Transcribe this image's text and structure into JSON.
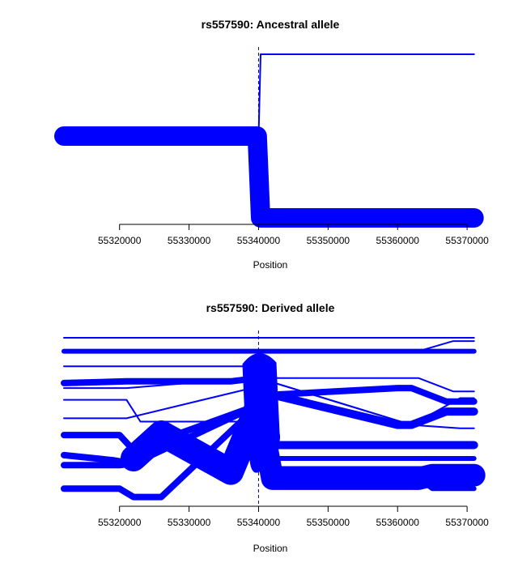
{
  "chart_data": [
    {
      "type": "line",
      "title": "rs557590: Ancestral allele",
      "xlabel": "Position",
      "ylabel": "",
      "xlim": [
        55312000,
        55371500
      ],
      "x_ticks": [
        55320000,
        55330000,
        55340000,
        55350000,
        55360000,
        55370000
      ],
      "x_tick_labels": [
        "55320000",
        "55330000",
        "55340000",
        "55350000",
        "55360000",
        "55370000"
      ],
      "marker_position": 55340000,
      "series": [
        {
          "x": [
            55340000,
            55340300,
            55371000
          ],
          "level": [
            0.0,
            1.0,
            1.0
          ],
          "weight": 1
        },
        {
          "x": [
            55312000,
            55339800,
            55340300,
            55371000
          ],
          "level": [
            0.0,
            0.0,
            -1.0,
            -1.0
          ],
          "weight": 12
        }
      ]
    },
    {
      "type": "line",
      "title": "rs557590: Derived allele",
      "xlabel": "Position",
      "ylabel": "",
      "xlim": [
        55312000,
        55371500
      ],
      "x_ticks": [
        55320000,
        55330000,
        55340000,
        55350000,
        55360000,
        55370000
      ],
      "x_tick_labels": [
        "55320000",
        "55330000",
        "55340000",
        "55350000",
        "55360000",
        "55370000"
      ],
      "marker_position": 55340000,
      "series": [
        {
          "x": [
            55312000,
            55340000,
            55363000,
            55368000,
            55371000
          ],
          "level": [
            1.0,
            1.0,
            1.0,
            1.0,
            1.0
          ],
          "weight": 1
        },
        {
          "x": [
            55312000,
            55340000,
            55363000,
            55368000,
            55371000
          ],
          "level": [
            0.92,
            0.92,
            0.92,
            0.98,
            0.98
          ],
          "weight": 1
        },
        {
          "x": [
            55312000,
            55340000,
            55363000,
            55368000,
            55371000
          ],
          "level": [
            0.92,
            0.92,
            0.92,
            0.92,
            0.92
          ],
          "weight": 3
        },
        {
          "x": [
            55312000,
            55340000
          ],
          "level": [
            0.83,
            0.83
          ],
          "weight": 1
        },
        {
          "x": [
            55312000,
            55321000,
            55339000,
            55340000
          ],
          "level": [
            0.7,
            0.7,
            0.76,
            0.76
          ],
          "weight": 1
        },
        {
          "x": [
            55312000,
            55321000,
            55339000,
            55340000
          ],
          "level": [
            0.52,
            0.52,
            0.7,
            0.7
          ],
          "weight": 1
        },
        {
          "x": [
            55312000,
            55321000,
            55323000,
            55339000,
            55340000
          ],
          "level": [
            0.63,
            0.63,
            0.5,
            0.5,
            0.5
          ],
          "weight": 1
        },
        {
          "x": [
            55340000,
            55363000,
            55368000,
            55371000
          ],
          "level": [
            0.76,
            0.76,
            0.68,
            0.68
          ],
          "weight": 1
        },
        {
          "x": [
            55340000,
            55362000,
            55369000,
            55371000
          ],
          "level": [
            0.76,
            0.48,
            0.64,
            0.64
          ],
          "weight": 1
        },
        {
          "x": [
            55340000,
            55362000,
            55369000,
            55371000
          ],
          "level": [
            0.76,
            0.48,
            0.46,
            0.46
          ],
          "weight": 1
        },
        {
          "x": [
            55312000,
            55321000,
            55326000,
            55336000,
            55340000
          ],
          "level": [
            0.73,
            0.74,
            0.74,
            0.74,
            0.76
          ],
          "weight": 4
        },
        {
          "x": [
            55340000,
            55342000,
            55360000,
            55362000,
            55367000,
            55371000
          ],
          "level": [
            0.76,
            0.66,
            0.7,
            0.7,
            0.62,
            0.62
          ],
          "weight": 4
        },
        {
          "x": [
            55340000,
            55342000,
            55360000,
            55362000,
            55367000,
            55371000
          ],
          "level": [
            0.76,
            0.66,
            0.48,
            0.48,
            0.56,
            0.56
          ],
          "weight": 5
        },
        {
          "x": [
            55312000,
            55320000,
            55322000,
            55340000
          ],
          "level": [
            0.42,
            0.42,
            0.33,
            0.6
          ],
          "weight": 4
        },
        {
          "x": [
            55312000,
            55320000,
            55322000,
            55340000
          ],
          "level": [
            0.24,
            0.24,
            0.25,
            0.6
          ],
          "weight": 4
        },
        {
          "x": [
            55312000,
            55319000,
            55322000,
            55340000
          ],
          "level": [
            0.3,
            0.27,
            0.25,
            0.6
          ],
          "weight": 4
        },
        {
          "x": [
            55312000,
            55320000,
            55322000,
            55326000,
            55340000
          ],
          "level": [
            0.1,
            0.1,
            0.05,
            0.05,
            0.6
          ],
          "weight": 4
        },
        {
          "x": [
            55322000,
            55326000,
            55336000,
            55340000
          ],
          "level": [
            0.28,
            0.43,
            0.2,
            0.6
          ],
          "weight": 16
        },
        {
          "x": [
            55340000,
            55342000,
            55371000
          ],
          "level": [
            0.6,
            0.36,
            0.36
          ],
          "weight": 5
        },
        {
          "x": [
            55340000,
            55342000,
            55371000
          ],
          "level": [
            0.6,
            0.28,
            0.28
          ],
          "weight": 3
        },
        {
          "x": [
            55340000,
            55342000,
            55371000
          ],
          "level": [
            0.6,
            0.22,
            0.22
          ],
          "weight": 3
        },
        {
          "x": [
            55340000,
            55342000,
            55363000,
            55365000,
            55371000
          ],
          "level": [
            0.6,
            0.16,
            0.16,
            0.18,
            0.18
          ],
          "weight": 14
        },
        {
          "x": [
            55340000,
            55342000,
            55363000,
            55365000,
            55371000
          ],
          "level": [
            0.6,
            0.16,
            0.16,
            0.1,
            0.1
          ],
          "weight": 3
        }
      ],
      "core_blob": {
        "x": 55340000,
        "level": 0.6,
        "weight": 40
      }
    }
  ]
}
